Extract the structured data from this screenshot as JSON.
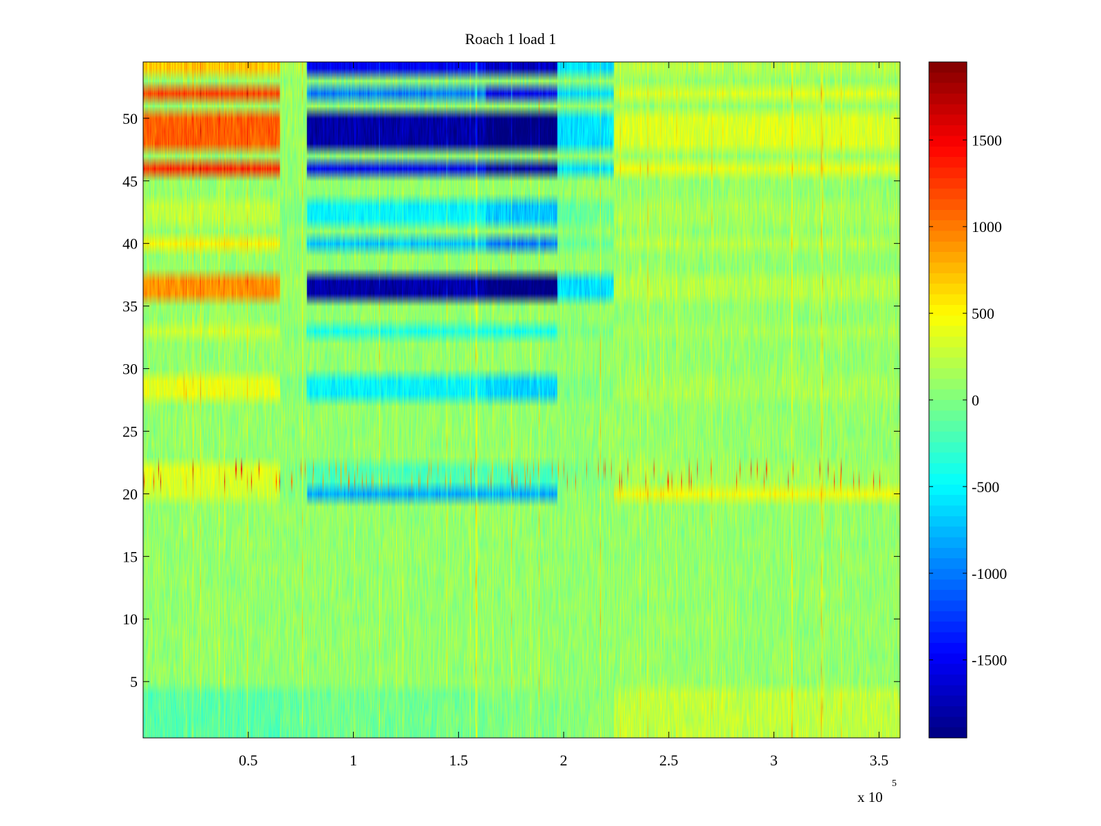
{
  "chart_data": {
    "type": "heatmap",
    "title": "Roach 1 load 1",
    "xlabel": "",
    "ylabel": "",
    "x_multiplier": {
      "base": "x 10",
      "exponent": "5"
    },
    "xlim": [
      0,
      360000
    ],
    "ylim": [
      0.5,
      54.5
    ],
    "x_ticks": [
      50000,
      100000,
      150000,
      200000,
      250000,
      300000,
      350000
    ],
    "x_tick_labels": [
      "0.5",
      "1",
      "1.5",
      "2",
      "2.5",
      "3",
      "3.5"
    ],
    "y_ticks": [
      5,
      10,
      15,
      20,
      25,
      30,
      35,
      40,
      45,
      50
    ],
    "y_tick_labels": [
      "5",
      "10",
      "15",
      "20",
      "25",
      "30",
      "35",
      "40",
      "45",
      "50"
    ],
    "colorbar": {
      "colormap": "jet",
      "clim": [
        -1950,
        1950
      ],
      "ticks": [
        1500,
        1000,
        500,
        0,
        -500,
        -1000,
        -1500
      ],
      "tick_labels": [
        "1500",
        "1000",
        "500",
        "0",
        "-500",
        "-1000",
        "-1500"
      ]
    },
    "rows": 54,
    "background_level": 80,
    "x_segments": [
      {
        "x_start": 0,
        "x_end": 65000,
        "label": "segment-1"
      },
      {
        "x_start": 65000,
        "x_end": 78000,
        "label": "segment-2"
      },
      {
        "x_start": 78000,
        "x_end": 163000,
        "label": "segment-3"
      },
      {
        "x_start": 163000,
        "x_end": 197000,
        "label": "segment-4"
      },
      {
        "x_start": 197000,
        "x_end": 224000,
        "label": "segment-5"
      },
      {
        "x_start": 224000,
        "x_end": 360000,
        "label": "segment-6"
      }
    ],
    "row_levels": [
      {
        "rows": [
          54
        ],
        "levels": [
          700,
          200,
          -1500,
          -1700,
          -600,
          200
        ]
      },
      {
        "rows": [
          52
        ],
        "levels": [
          1200,
          150,
          -1000,
          -1500,
          -600,
          350
        ]
      },
      {
        "rows": [
          50,
          49,
          48
        ],
        "levels": [
          1100,
          100,
          -1800,
          -1950,
          -600,
          350
        ]
      },
      {
        "rows": [
          46
        ],
        "levels": [
          1300,
          100,
          -1500,
          -1800,
          -600,
          400
        ]
      },
      {
        "rows": [
          43,
          42
        ],
        "levels": [
          250,
          0,
          -500,
          -700,
          -100,
          150
        ]
      },
      {
        "rows": [
          40
        ],
        "levels": [
          500,
          50,
          -700,
          -1000,
          -100,
          200
        ]
      },
      {
        "rows": [
          37,
          36
        ],
        "levels": [
          900,
          100,
          -1800,
          -1950,
          -600,
          200
        ]
      },
      {
        "rows": [
          33
        ],
        "levels": [
          300,
          0,
          -400,
          -400,
          0,
          150
        ]
      },
      {
        "rows": [
          29,
          28
        ],
        "levels": [
          400,
          0,
          -500,
          -650,
          0,
          150
        ]
      },
      {
        "rows": [
          22,
          21
        ],
        "levels": [
          350,
          0,
          -200,
          -200,
          0,
          150
        ]
      },
      {
        "rows": [
          20
        ],
        "levels": [
          300,
          50,
          -800,
          -800,
          50,
          450
        ]
      },
      {
        "rows": [
          4,
          3,
          2,
          1
        ],
        "levels": [
          -150,
          -100,
          -50,
          0,
          50,
          250
        ]
      }
    ]
  }
}
